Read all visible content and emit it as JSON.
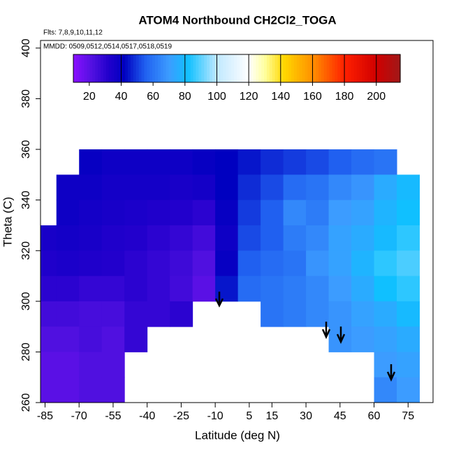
{
  "chart_data": {
    "type": "heatmap",
    "title": "ATOM4 Northbound CH2Cl2_TOGA",
    "annotations": [
      "Flts: 7,8,9,10,11,12",
      "MMDD: 0509,0512,0514,0517,0518,0519"
    ],
    "x_label": "Latitude (deg N)",
    "y_label": "Theta (C)",
    "xlim": [
      -87,
      86
    ],
    "ylim": [
      260,
      403
    ],
    "xticks": [
      -85,
      -70,
      -55,
      -40,
      -25,
      -10,
      5,
      15,
      30,
      45,
      60,
      75
    ],
    "yticks": [
      260,
      280,
      300,
      320,
      340,
      360,
      380,
      400
    ],
    "x": [
      -85,
      -75,
      -65,
      -55,
      -45,
      -35,
      -25,
      -15,
      -5,
      5,
      15,
      25,
      35,
      45,
      55,
      65,
      75
    ],
    "y": [
      355,
      345,
      335,
      325,
      315,
      305,
      295,
      285,
      275,
      265
    ],
    "z": [
      [
        null,
        null,
        40,
        38,
        38,
        38,
        38,
        40,
        42,
        45,
        48,
        50,
        52,
        55,
        58,
        60,
        null
      ],
      [
        null,
        38,
        38,
        36,
        36,
        36,
        35,
        36,
        42,
        48,
        52,
        58,
        60,
        65,
        68,
        75,
        80
      ],
      [
        null,
        38,
        36,
        35,
        34,
        33,
        32,
        30,
        40,
        50,
        55,
        65,
        62,
        70,
        72,
        78,
        82
      ],
      [
        35,
        36,
        35,
        33,
        32,
        30,
        28,
        25,
        38,
        52,
        55,
        62,
        65,
        72,
        75,
        80,
        85
      ],
      [
        33,
        34,
        33,
        32,
        30,
        28,
        26,
        22,
        40,
        55,
        58,
        60,
        68,
        72,
        78,
        85,
        88
      ],
      [
        30,
        30,
        28,
        28,
        30,
        28,
        25,
        20,
        45,
        58,
        60,
        62,
        65,
        70,
        75,
        82,
        85
      ],
      [
        25,
        25,
        24,
        24,
        28,
        28,
        30,
        null,
        null,
        null,
        60,
        62,
        65,
        68,
        72,
        75,
        80
      ],
      [
        22,
        22,
        24,
        22,
        28,
        null,
        null,
        null,
        null,
        null,
        null,
        null,
        null,
        68,
        70,
        72,
        75
      ],
      [
        20,
        20,
        22,
        22,
        null,
        null,
        null,
        null,
        null,
        null,
        null,
        null,
        null,
        null,
        null,
        70,
        72
      ],
      [
        20,
        20,
        22,
        22,
        null,
        null,
        null,
        null,
        null,
        null,
        null,
        null,
        null,
        null,
        null,
        65,
        70
      ]
    ],
    "colorbar": {
      "lim": [
        10,
        215
      ],
      "ticks": [
        20,
        40,
        60,
        80,
        100,
        120,
        140,
        160,
        180,
        200
      ],
      "levels": [
        40,
        80,
        100,
        120,
        140,
        160,
        180,
        200
      ],
      "stops": [
        [
          10,
          "#8a10ff"
        ],
        [
          22,
          "#5010e0"
        ],
        [
          32,
          "#2200cc"
        ],
        [
          42,
          "#0000c0"
        ],
        [
          55,
          "#2060f0"
        ],
        [
          70,
          "#3c9cff"
        ],
        [
          82,
          "#10c0ff"
        ],
        [
          100,
          "#c0e8ff"
        ],
        [
          120,
          "#ffffff"
        ],
        [
          130,
          "#ffffa0"
        ],
        [
          142,
          "#ffd800"
        ],
        [
          160,
          "#ff9000"
        ],
        [
          180,
          "#ff2000"
        ],
        [
          200,
          "#d00000"
        ],
        [
          215,
          "#a01818"
        ]
      ]
    }
  }
}
